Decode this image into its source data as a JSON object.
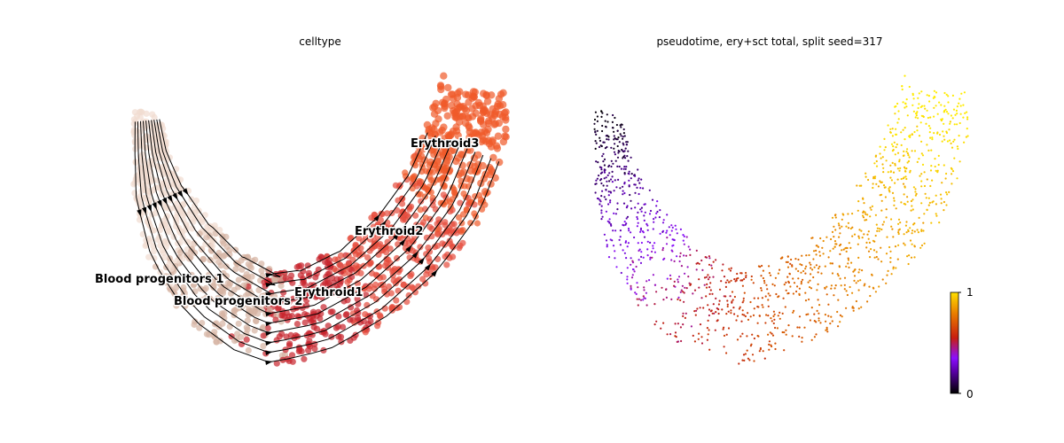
{
  "chart_data": [
    {
      "type": "scatter",
      "subtype": "embedding-stream",
      "title": "celltype",
      "legend": "on data",
      "axes": "off",
      "categories": [
        {
          "name": "Blood progenitors 1",
          "color": "#f1dcd0"
        },
        {
          "name": "Blood progenitors 2",
          "color": "#d6b3a3"
        },
        {
          "name": "Erythroid1",
          "color": "#c8242c"
        },
        {
          "name": "Erythroid2",
          "color": "#e54c3c"
        },
        {
          "name": "Erythroid3",
          "color": "#ef5a2a"
        }
      ],
      "streamlines": "velocity arrows overlaid, pointing from Blood progenitors toward Erythroid3"
    },
    {
      "type": "scatter",
      "subtype": "embedding-continuous",
      "title": "pseudotime, ery+sct total, split seed=317",
      "axes": "off",
      "colormap": "gnuplot",
      "colorbar": {
        "min": 0,
        "max": 1,
        "ticks": [
          "0",
          "1"
        ],
        "colors": [
          "#000000",
          "#7a00ff",
          "#c81e00",
          "#ffe000"
        ]
      },
      "value_range": [
        0,
        1
      ]
    }
  ]
}
